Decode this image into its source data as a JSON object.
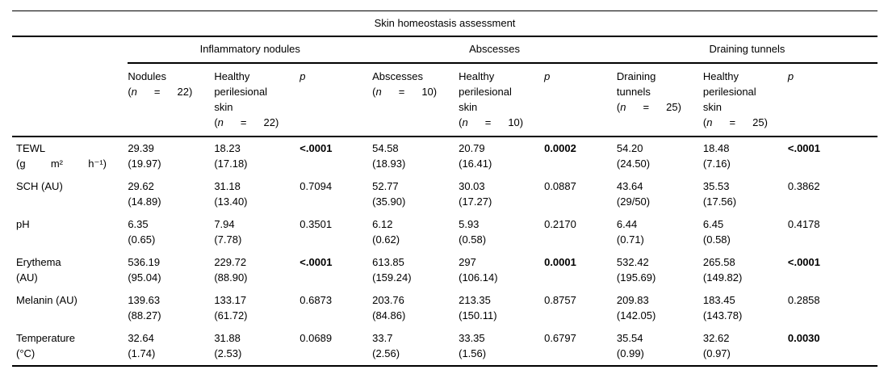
{
  "table": {
    "title": "Skin homeostasis assessment",
    "groups": [
      {
        "label": "Inflammatory nodules"
      },
      {
        "label": "Abscesses"
      },
      {
        "label": "Draining tunnels"
      }
    ],
    "columns": [
      {
        "title": "Nodules",
        "n_parts": [
          "(",
          "n",
          "=",
          "22)"
        ]
      },
      {
        "title": "Healthy perilesional skin",
        "n_parts": [
          "(",
          "n",
          "=",
          "22)"
        ]
      },
      {
        "title": "p"
      },
      {
        "title": "Abscesses",
        "n_parts": [
          "(",
          "n",
          "=",
          "10)"
        ]
      },
      {
        "title": "Healthy perilesional skin",
        "n_parts": [
          "(",
          "n",
          "=",
          "10)"
        ]
      },
      {
        "title": "p"
      },
      {
        "title": "Draining tunnels",
        "n_parts": [
          "(",
          "n",
          "=",
          "25)"
        ]
      },
      {
        "title": "Healthy perilesional skin",
        "n_parts": [
          "(",
          "n",
          "=",
          "25)"
        ]
      },
      {
        "title": "p"
      }
    ],
    "rows": [
      {
        "label": "TEWL",
        "unit_parts": [
          "(g",
          "m²",
          "h⁻¹)"
        ],
        "cells": [
          {
            "v": "29.39",
            "sd": "(19.97)"
          },
          {
            "v": "18.23",
            "sd": "(17.18)"
          },
          {
            "p": "<.0001",
            "bold": true
          },
          {
            "v": "54.58",
            "sd": "(18.93)"
          },
          {
            "v": "20.79",
            "sd": "(16.41)"
          },
          {
            "p": "0.0002",
            "bold": true
          },
          {
            "v": "54.20",
            "sd": "(24.50)"
          },
          {
            "v": "18.48",
            "sd": "(7.16)"
          },
          {
            "p": "<.0001",
            "bold": true
          }
        ]
      },
      {
        "label": "SCH (AU)",
        "cells": [
          {
            "v": "29.62",
            "sd": "(14.89)"
          },
          {
            "v": "31.18",
            "sd": "(13.40)"
          },
          {
            "p": "0.7094",
            "bold": false
          },
          {
            "v": "52.77",
            "sd": "(35.90)"
          },
          {
            "v": "30.03",
            "sd": "(17.27)"
          },
          {
            "p": "0.0887",
            "bold": false
          },
          {
            "v": "43.64",
            "sd": "(29/50)"
          },
          {
            "v": "35.53",
            "sd": "(17.56)"
          },
          {
            "p": "0.3862",
            "bold": false
          }
        ]
      },
      {
        "label": "pH",
        "cells": [
          {
            "v": "6.35",
            "sd": "(0.65)"
          },
          {
            "v": "7.94",
            "sd": "(7.78)"
          },
          {
            "p": "0.3501",
            "bold": false
          },
          {
            "v": "6.12",
            "sd": "(0.62)"
          },
          {
            "v": "5.93",
            "sd": "(0.58)"
          },
          {
            "p": "0.2170",
            "bold": false
          },
          {
            "v": "6.44",
            "sd": "(0.71)"
          },
          {
            "v": "6.45",
            "sd": "(0.58)"
          },
          {
            "p": "0.4178",
            "bold": false
          }
        ]
      },
      {
        "label": "Erythema",
        "unit": "(AU)",
        "cells": [
          {
            "v": "536.19",
            "sd": "(95.04)"
          },
          {
            "v": "229.72",
            "sd": "(88.90)"
          },
          {
            "p": "<.0001",
            "bold": true
          },
          {
            "v": "613.85",
            "sd": "(159.24)"
          },
          {
            "v": "297",
            "sd": "(106.14)"
          },
          {
            "p": "0.0001",
            "bold": true
          },
          {
            "v": "532.42",
            "sd": "(195.69)"
          },
          {
            "v": "265.58",
            "sd": "(149.82)"
          },
          {
            "p": "<.0001",
            "bold": true
          }
        ]
      },
      {
        "label": "Melanin (AU)",
        "cells": [
          {
            "v": "139.63",
            "sd": "(88.27)"
          },
          {
            "v": "133.17",
            "sd": "(61.72)"
          },
          {
            "p": "0.6873",
            "bold": false
          },
          {
            "v": "203.76",
            "sd": "(84.86)"
          },
          {
            "v": "213.35",
            "sd": "(150.11)"
          },
          {
            "p": "0.8757",
            "bold": false
          },
          {
            "v": "209.83",
            "sd": "(142.05)"
          },
          {
            "v": "183.45",
            "sd": "(143.78)"
          },
          {
            "p": "0.2858",
            "bold": false
          }
        ]
      },
      {
        "label": "Temperature",
        "unit": "(°C)",
        "cells": [
          {
            "v": "32.64",
            "sd": "(1.74)"
          },
          {
            "v": "31.88",
            "sd": "(2.53)"
          },
          {
            "p": "0.0689",
            "bold": false
          },
          {
            "v": "33.7",
            "sd": "(2.56)"
          },
          {
            "v": "33.35",
            "sd": "(1.56)"
          },
          {
            "p": "0.6797",
            "bold": false
          },
          {
            "v": "35.54",
            "sd": "(0.99)"
          },
          {
            "v": "32.62",
            "sd": "(0.97)"
          },
          {
            "p": "0.0030",
            "bold": true
          }
        ]
      }
    ]
  }
}
